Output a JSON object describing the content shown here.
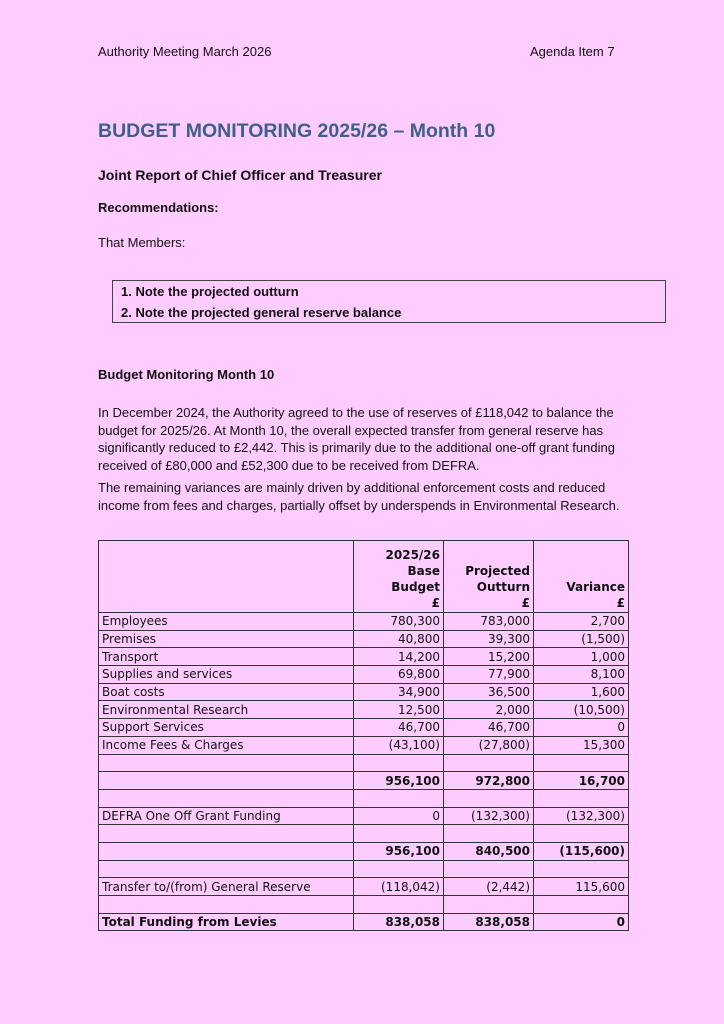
{
  "header": {
    "left": "Authority Meeting March 2026",
    "right": "Agenda Item 7"
  },
  "title": "BUDGET MONITORING 2025/26 – Month 10",
  "subtitle": "Joint Report of Chief Officer and Treasurer",
  "recommendations_heading": "Recommendations:",
  "intro": "That Members:",
  "recommendations": [
    "1.  Note the projected outturn",
    "2.  Note the projected general reserve balance"
  ],
  "section_heading": "Budget Monitoring Month 10",
  "paragraphs": [
    "In December 2024, the Authority agreed to the use of reserves of £118,042 to balance the budget for 2025/26. At Month 10, the overall expected transfer from general reserve has significantly reduced to £2,442. This is primarily due to the additional one-off grant funding received of £80,000 and £52,300 due to be received from DEFRA.",
    "The remaining variances are mainly driven by additional enforcement costs and reduced income from fees and charges, partially offset by underspends in Environmental Research."
  ],
  "table": {
    "headers": [
      [
        "2025/26",
        "Base",
        "Budget",
        "£"
      ],
      [
        "Projected",
        "Outturn",
        "£"
      ],
      [
        "Variance",
        "£"
      ]
    ],
    "rows": [
      {
        "label": "Employees",
        "budget": "780,300",
        "outturn": "783,000",
        "variance": "2,700"
      },
      {
        "label": "Premises",
        "budget": "40,800",
        "outturn": "39,300",
        "variance": "(1,500)"
      },
      {
        "label": "Transport",
        "budget": "14,200",
        "outturn": "15,200",
        "variance": "1,000"
      },
      {
        "label": "Supplies and services",
        "budget": "69,800",
        "outturn": "77,900",
        "variance": "8,100"
      },
      {
        "label": "Boat costs",
        "budget": "34,900",
        "outturn": "36,500",
        "variance": "1,600"
      },
      {
        "label": "Environmental Research",
        "budget": "12,500",
        "outturn": "2,000",
        "variance": "(10,500)"
      },
      {
        "label": "Support Services",
        "budget": "46,700",
        "outturn": "46,700",
        "variance": "0"
      },
      {
        "label": "Income Fees & Charges",
        "budget": "(43,100)",
        "outturn": "(27,800)",
        "variance": "15,300"
      },
      {
        "label": "",
        "budget": "",
        "outturn": "",
        "variance": ""
      },
      {
        "label": "",
        "budget": "956,100",
        "outturn": "972,800",
        "variance": "16,700",
        "bold": true
      },
      {
        "label": "",
        "budget": "",
        "outturn": "",
        "variance": ""
      },
      {
        "label": "DEFRA One Off Grant Funding",
        "budget": "0",
        "outturn": "(132,300)",
        "variance": "(132,300)"
      },
      {
        "label": "",
        "budget": "",
        "outturn": "",
        "variance": ""
      },
      {
        "label": "",
        "budget": "956,100",
        "outturn": "840,500",
        "variance": "(115,600)",
        "bold": true
      },
      {
        "label": "",
        "budget": "",
        "outturn": "",
        "variance": ""
      },
      {
        "label": "Transfer to/(from) General Reserve",
        "budget": "(118,042)",
        "outturn": "(2,442)",
        "variance": "115,600"
      },
      {
        "label": "",
        "budget": "",
        "outturn": "",
        "variance": ""
      },
      {
        "label": "Total Funding from Levies",
        "budget": "838,058",
        "outturn": "838,058",
        "variance": "0",
        "bold": true
      }
    ]
  }
}
